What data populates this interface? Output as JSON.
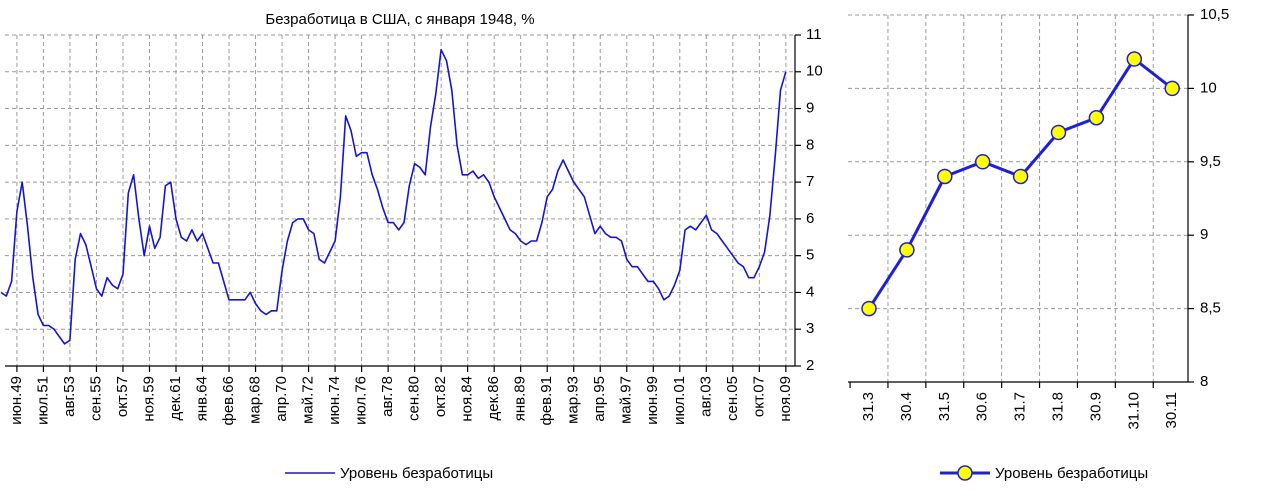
{
  "chart_data": [
    {
      "type": "line",
      "title": "Безработица в США, с января 1948, %",
      "categories": [
        null,
        null,
        null,
        "июн.49",
        null,
        null,
        null,
        null,
        "июл.51",
        null,
        null,
        null,
        null,
        "авг.53",
        null,
        null,
        null,
        null,
        "сен.55",
        null,
        null,
        null,
        null,
        "окт.57",
        null,
        null,
        null,
        null,
        "ноя.59",
        null,
        null,
        null,
        null,
        "дек.61",
        null,
        null,
        null,
        null,
        "янв.64",
        null,
        null,
        null,
        null,
        "фев.66",
        null,
        null,
        null,
        null,
        "мар.68",
        null,
        null,
        null,
        null,
        "апр.70",
        null,
        null,
        null,
        null,
        "май.72",
        null,
        null,
        null,
        null,
        "июн.74",
        null,
        null,
        null,
        null,
        "июл.76",
        null,
        null,
        null,
        null,
        "авг.78",
        null,
        null,
        null,
        null,
        "сен.80",
        null,
        null,
        null,
        null,
        "окт.82",
        null,
        null,
        null,
        null,
        "ноя.84",
        null,
        null,
        null,
        null,
        "дек.86",
        null,
        null,
        null,
        null,
        "янв.89",
        null,
        null,
        null,
        null,
        "фев.91",
        null,
        null,
        null,
        null,
        "мар.93",
        null,
        null,
        null,
        null,
        "апр.95",
        null,
        null,
        null,
        null,
        "май.97",
        null,
        null,
        null,
        null,
        "июн.99",
        null,
        null,
        null,
        null,
        "июл.01",
        null,
        null,
        null,
        null,
        "авг.03",
        null,
        null,
        null,
        null,
        "сен.05",
        null,
        null,
        null,
        null,
        "окт.07",
        null,
        null,
        null,
        null,
        "ноя.09"
      ],
      "series": [
        {
          "name": "Уровень безработицы",
          "color": "#1515d0",
          "values": [
            4.0,
            3.9,
            4.3,
            6.2,
            7.0,
            5.8,
            4.4,
            3.4,
            3.1,
            3.1,
            3.0,
            2.8,
            2.6,
            2.7,
            4.9,
            5.6,
            5.3,
            4.7,
            4.1,
            3.9,
            4.4,
            4.2,
            4.1,
            4.5,
            6.7,
            7.2,
            6.0,
            5.0,
            5.8,
            5.2,
            5.5,
            6.9,
            7.0,
            6.0,
            5.5,
            5.4,
            5.7,
            5.4,
            5.6,
            5.2,
            4.8,
            4.8,
            4.3,
            3.8,
            3.8,
            3.8,
            3.8,
            4.0,
            3.7,
            3.5,
            3.4,
            3.5,
            3.5,
            4.6,
            5.4,
            5.9,
            6.0,
            6.0,
            5.7,
            5.6,
            4.9,
            4.8,
            5.1,
            5.4,
            6.6,
            8.8,
            8.4,
            7.7,
            7.8,
            7.8,
            7.2,
            6.8,
            6.3,
            5.9,
            5.9,
            5.7,
            5.9,
            6.9,
            7.5,
            7.4,
            7.2,
            8.5,
            9.4,
            10.6,
            10.3,
            9.5,
            8.0,
            7.2,
            7.2,
            7.3,
            7.1,
            7.2,
            7.0,
            6.6,
            6.3,
            6.0,
            5.7,
            5.6,
            5.4,
            5.3,
            5.4,
            5.4,
            5.9,
            6.6,
            6.8,
            7.3,
            7.6,
            7.3,
            7.0,
            6.8,
            6.6,
            6.1,
            5.6,
            5.8,
            5.6,
            5.5,
            5.5,
            5.4,
            4.9,
            4.7,
            4.7,
            4.5,
            4.3,
            4.3,
            4.1,
            3.8,
            3.9,
            4.2,
            4.6,
            5.7,
            5.8,
            5.7,
            5.9,
            6.1,
            5.7,
            5.6,
            5.4,
            5.2,
            5.0,
            4.8,
            4.7,
            4.4,
            4.4,
            4.7,
            5.1,
            6.1,
            7.7,
            9.5,
            10.0
          ]
        }
      ],
      "ylim": [
        2,
        11
      ],
      "yticks": [
        2,
        3,
        4,
        5,
        6,
        7,
        8,
        9,
        10,
        11
      ],
      "grid": true
    },
    {
      "type": "line",
      "categories": [
        "31.3",
        "30.4",
        "31.5",
        "30.6",
        "31.7",
        "31.8",
        "30.9",
        "31.10",
        "30.11"
      ],
      "series": [
        {
          "name": "Уровень безработицы",
          "color": "#1f1fd6",
          "marker_color": "#ffff00",
          "values": [
            8.5,
            8.9,
            9.4,
            9.5,
            9.4,
            9.7,
            9.8,
            10.2,
            10.0
          ]
        }
      ],
      "ylim": [
        8,
        10.5
      ],
      "yticks": [
        8,
        {
          "value": 8.5,
          "label": "8,5"
        },
        9,
        {
          "value": 9.5,
          "label": "9,5"
        },
        10,
        {
          "value": 10.5,
          "label": "10,5"
        }
      ],
      "grid": true
    }
  ]
}
